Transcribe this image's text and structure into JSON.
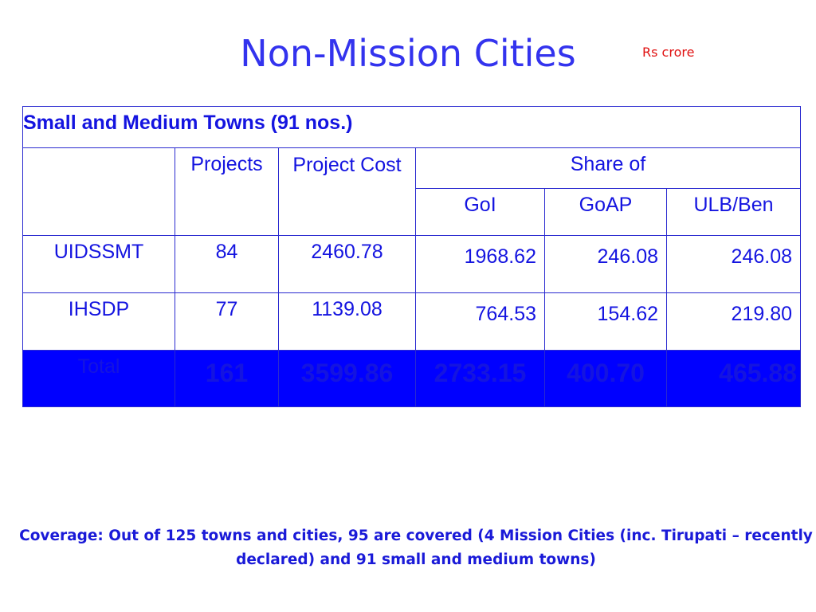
{
  "title": "Non-Mission Cities",
  "unit": "Rs crore",
  "table": {
    "heading": "Small and Medium Towns (91 nos.)",
    "headers": {
      "projects": "Projects",
      "project_cost": "Project Cost",
      "share_of": "Share of",
      "goi": "GoI",
      "goap": "GoAP",
      "ulb": "ULB/Ben"
    },
    "rows": [
      {
        "name": "UIDSSMT",
        "projects": "84",
        "cost": "2460.78",
        "goi": "1968.62",
        "goap": "246.08",
        "ulb": "246.08"
      },
      {
        "name": "IHSDP",
        "projects": "77",
        "cost": "1139.08",
        "goi": "764.53",
        "goap": "154.62",
        "ulb": "219.80"
      }
    ],
    "total": {
      "name": "Total",
      "projects": "161",
      "cost": "3599.86",
      "goi": "2733.15",
      "goap": "400.70",
      "ulb": "465.88"
    }
  },
  "note": {
    "line1": "Coverage: Out of 125 towns and cities, 95 are covered (4 Mission Cities (inc. Tirupati – recently",
    "line2": "declared) and 91 small and medium towns)"
  },
  "colors": {
    "title": "#3333ee",
    "unit": "#e01010",
    "table_text": "#1414e0",
    "total_fill": "#0000ff"
  }
}
